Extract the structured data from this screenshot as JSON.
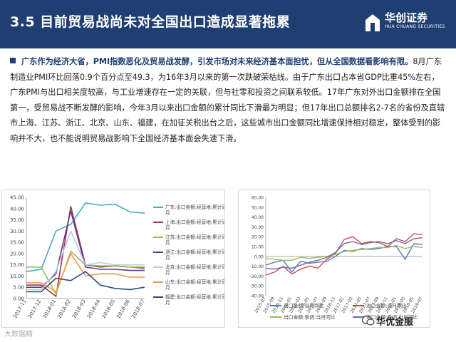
{
  "header": {
    "title": "3.5 目前贸易战尚未对全国出口造成显著拖累",
    "logo_cn": "华创证券",
    "logo_en": "HUA CHUANG SECURITIES"
  },
  "paragraph": {
    "bold": "广东作为经济大省，PMI指数恶化及贸易战发酵，引发市场对未来经济基本面担忧，但从全国数据看影响有限。",
    "body": "8月广东制造业PMI环比回落0.9个百分点至49.3，为16年3月以来的第一次跌破荣枯线。由于广东出口占本省GDP比重45%左右，广东PMI与出口相关度较高，与工业增速存在一定的关联，但与社零和投资之间联系较低。17年广东对外出口金额排在全国第一，受贸易战不断发酵的影响，今年3月以来出口金额的累计同比下滑最为明显；但17年出口总额排名2-7名的省份及直辖市上海、江苏、浙江、北京、山东、福建，在加征关税出台之后，这些城市出口金额同比增速保持相对稳定，整体受到的影响并不大，也不能说明贸易战影响下全国经济基本面会失速下滑。"
  },
  "chart_data": [
    {
      "type": "line",
      "categories": [
        "2017-11",
        "2017-12",
        "2018-01",
        "2018-02",
        "2018-03",
        "2018-04",
        "2018-05",
        "2018-06",
        "2018-07"
      ],
      "y_ticks": [
        "45.00",
        "40.00",
        "35.00",
        "30.00",
        "25.00",
        "20.00",
        "15.00",
        "10.00",
        "5.00",
        "0.00"
      ],
      "ylim": [
        0,
        45
      ],
      "series": [
        {
          "name": "广东:出口金额:经营地:累计同比 月",
          "color": "#4aa8c8",
          "values": [
            12,
            13,
            30,
            33,
            42.5,
            41.5,
            42,
            38.5,
            38
          ]
        },
        {
          "name": "上海:出口金额:经营地:累计同比 月",
          "color": "#a0344a",
          "values": [
            6,
            6,
            1,
            41,
            15,
            14,
            14.5,
            14,
            13.5
          ]
        },
        {
          "name": "江苏:出口金额:经营地:累计同比 月",
          "color": "#9bbb59",
          "values": [
            14,
            14,
            2,
            21,
            15,
            14.5,
            14.5,
            14,
            14
          ]
        },
        {
          "name": "浙江:出口金额:经营地:累计同比 月",
          "color": "#5b3e8a",
          "values": [
            5,
            5,
            11,
            39,
            14,
            13,
            13,
            12.5,
            12.5
          ]
        },
        {
          "name": "北京:出口金额:经营地:累计同比 月",
          "color": "#b8cce4",
          "values": [
            4,
            4,
            12,
            30,
            15,
            16,
            15,
            15,
            15
          ]
        },
        {
          "name": "山东:出口金额:经营地:累计同比 月",
          "color": "#f79646",
          "values": [
            7,
            7,
            3,
            20,
            10,
            11,
            11,
            9.5,
            9.5
          ]
        },
        {
          "name": "福建:出口金额:经营地:累计同比 月",
          "color": "#2c4d75",
          "values": [
            3,
            3,
            9,
            8,
            12,
            6,
            4.5,
            4,
            5
          ]
        }
      ]
    },
    {
      "type": "line",
      "categories": [
        "2015-07",
        "2015-09",
        "2015-11",
        "2016-01",
        "2016-03",
        "2016-05",
        "2016-07",
        "2016-09",
        "2016-11",
        "2017-01",
        "2017-03",
        "2017-05",
        "2017-07",
        "2017-09",
        "2017-11",
        "2018-01",
        "2018-03",
        "2018-05",
        "2018-07"
      ],
      "y_ticks": [
        "60.00",
        "50.00",
        "40.00",
        "30.00",
        "20.00",
        "10.00",
        "0.00",
        "-10.00",
        "-20.00",
        "-30.00",
        "-40.00"
      ],
      "ylim": [
        -40,
        60
      ],
      "series": [
        {
          "name": "出口金额:当月同比",
          "color": "#4f81bd",
          "values": [
            -9,
            -6,
            -4,
            -16,
            -5,
            -7,
            -6,
            -5,
            0,
            6,
            5,
            8,
            7,
            8,
            10,
            10,
            -3,
            13,
            12
          ]
        },
        {
          "name": "进口金额:当月同比",
          "color": "#c0504d",
          "values": [
            -19,
            -16,
            -10,
            -18,
            -13,
            -10,
            -12,
            -3,
            3,
            17,
            20,
            13,
            15,
            14,
            10,
            18,
            15,
            23,
            22
          ]
        },
        {
          "name": "出口金额:季调:当月同比",
          "color": "#9bbb59",
          "values": [
            -2,
            -3,
            -4,
            -4,
            -1,
            -2,
            -1,
            0,
            2,
            5,
            6,
            7,
            8,
            9,
            9,
            11,
            8,
            10,
            9
          ]
        },
        {
          "name": "进口金额:季调:当月同比",
          "color": "#8064a2",
          "values": [
            -12,
            -13,
            -11,
            -12,
            -9,
            -6,
            -4,
            -1,
            4,
            13,
            15,
            12,
            14,
            15,
            13,
            16,
            13,
            18,
            19
          ]
        }
      ]
    }
  ],
  "watermarks": {
    "left": "大数据精",
    "right": "华优金服"
  }
}
